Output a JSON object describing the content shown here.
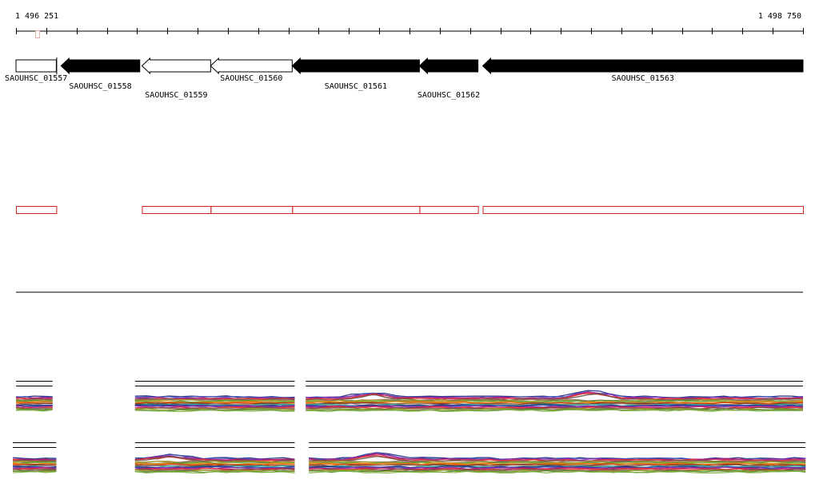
{
  "ruler": {
    "start_label": "1 496 251",
    "end_label": "1 498 750",
    "start": 1496251,
    "end": 1498750,
    "minor_tick_count": 26
  },
  "genes": [
    {
      "id": "SAOUHSC_01557",
      "label": "SAOUHSC_01557",
      "start": 1496251,
      "end": 1496379,
      "strand": "+",
      "fill": "#ffffff",
      "label_row": 0
    },
    {
      "id": "SAOUHSC_01558",
      "label": "SAOUHSC_01558",
      "start": 1496394,
      "end": 1496644,
      "strand": "-",
      "fill": "#000000",
      "label_row": 1
    },
    {
      "id": "SAOUHSC_01559",
      "label": "SAOUHSC_01559",
      "start": 1496651,
      "end": 1496869,
      "strand": "-",
      "fill": "#ffffff",
      "label_row": 2
    },
    {
      "id": "SAOUHSC_01560",
      "label": "SAOUHSC_01560",
      "start": 1496869,
      "end": 1497128,
      "strand": "-",
      "fill": "#ffffff",
      "label_row": 0
    },
    {
      "id": "SAOUHSC_01561",
      "label": "SAOUHSC_01561",
      "start": 1497128,
      "end": 1497532,
      "strand": "-",
      "fill": "#000000",
      "label_row": 1
    },
    {
      "id": "SAOUHSC_01562",
      "label": "SAOUHSC_01562",
      "start": 1497532,
      "end": 1497718,
      "strand": "-",
      "fill": "#000000",
      "label_row": 2
    },
    {
      "id": "SAOUHSC_01563",
      "label": "SAOUHSC_01563",
      "start": 1497733,
      "end": 1498750,
      "strand": "-",
      "fill": "#000000",
      "label_row": 0
    }
  ],
  "regions": [
    {
      "start": 1496251,
      "end": 1496379
    },
    {
      "start": 1496651,
      "end": 1496869
    },
    {
      "start": 1496869,
      "end": 1497128
    },
    {
      "start": 1497128,
      "end": 1497532
    },
    {
      "start": 1497532,
      "end": 1497718
    },
    {
      "start": 1497733,
      "end": 1498750
    }
  ],
  "coverage_tracks": [
    {
      "segments": [
        {
          "start": 1496251,
          "end": 1496367
        },
        {
          "start": 1496629,
          "end": 1497136
        },
        {
          "start": 1497171,
          "end": 1498750
        }
      ],
      "bumps": [
        {
          "at": 1497380,
          "h": 6
        },
        {
          "at": 1498080,
          "h": 8
        }
      ]
    },
    {
      "segments": [
        {
          "start": 1496241,
          "end": 1496379
        },
        {
          "start": 1496629,
          "end": 1497136
        },
        {
          "start": 1497181,
          "end": 1498758
        }
      ],
      "bumps": [
        {
          "at": 1496740,
          "h": 5
        },
        {
          "at": 1497400,
          "h": 7
        }
      ]
    }
  ],
  "colors": {
    "ruler": "#000000",
    "ruler_marker": "#e8b0a0",
    "gene_stroke": "#000000",
    "region_stroke": "#d02020",
    "separator": "#000000",
    "coverage_palette": [
      "#1a237e",
      "#3f51b5",
      "#8e24aa",
      "#c2185b",
      "#e53935",
      "#6d4c41",
      "#8d6e63",
      "#9e9d24",
      "#558b2f",
      "#7cb342",
      "#f57f17",
      "#ef6c00",
      "#bf360c",
      "#5d4037",
      "#a1887f",
      "#26a69a"
    ]
  }
}
